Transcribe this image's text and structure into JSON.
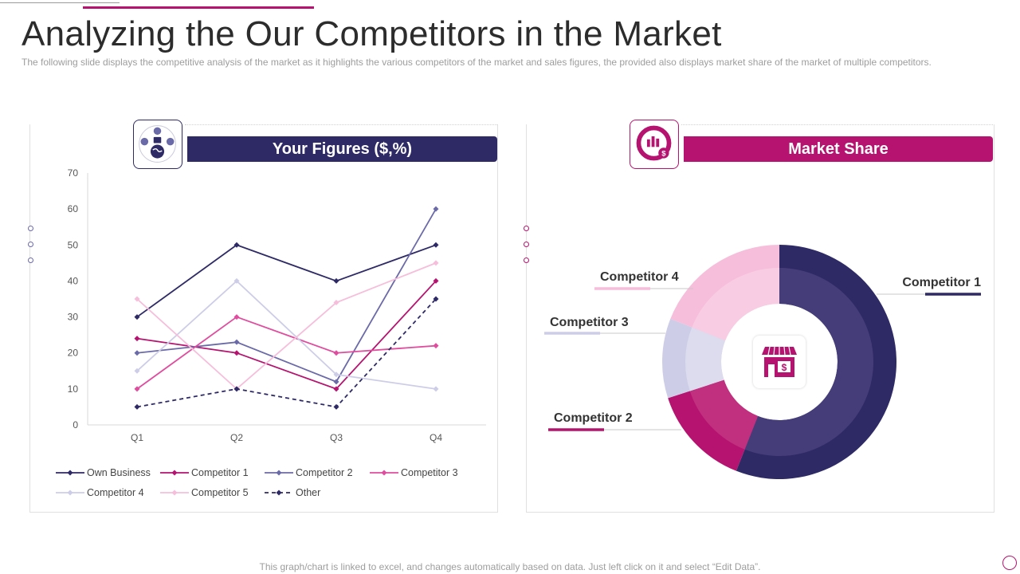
{
  "page": {
    "title": "Analyzing the Our Competitors in the Market",
    "subtitle": "The following  slide displays the competitive  analysis  of the market as it highlights the various  competitors of the market and sales figures,  the provided  also displays market share of the market of multiple competitors.",
    "footer": "This graph/chart is linked to excel,  and changes automatically based on data. Just left click on it and select “Edit Data”."
  },
  "left_panel": {
    "banner": "Your Figures ($,%)",
    "icon": "globe-people-icon"
  },
  "right_panel": {
    "banner": "Market Share",
    "icon": "analytics-dollar-icon",
    "center_icon": "store-dollar-icon"
  },
  "colors": {
    "navy": "#2e2a66",
    "magenta": "#b5136f",
    "blue_gray": "#6b6aa8",
    "pink": "#e04c9e",
    "lavender": "#cdcde8",
    "light_pink": "#f6bedb"
  },
  "chart_data": [
    {
      "type": "line",
      "categories": [
        "Q1",
        "Q2",
        "Q3",
        "Q4"
      ],
      "ylim": [
        0,
        70
      ],
      "yticks": [
        0,
        10,
        20,
        30,
        40,
        50,
        60,
        70
      ],
      "legend_position": "bottom",
      "series": [
        {
          "name": "Own Business",
          "values": [
            30,
            50,
            40,
            50
          ],
          "color": "#2e2a66",
          "dash": false
        },
        {
          "name": "Competitor 1",
          "values": [
            24,
            20,
            10,
            40
          ],
          "color": "#b5136f",
          "dash": false
        },
        {
          "name": "Competitor 2",
          "values": [
            20,
            23,
            12,
            60
          ],
          "color": "#6b6aa8",
          "dash": false
        },
        {
          "name": "Competitor 3",
          "values": [
            10,
            30,
            20,
            22
          ],
          "color": "#e04c9e",
          "dash": false
        },
        {
          "name": "Competitor 4",
          "values": [
            15,
            40,
            14,
            10
          ],
          "color": "#cdcde8",
          "dash": false
        },
        {
          "name": "Competitor 5",
          "values": [
            35,
            10,
            34,
            45
          ],
          "color": "#f6bedb",
          "dash": false
        },
        {
          "name": "Other",
          "values": [
            5,
            10,
            5,
            35
          ],
          "color": "#2e2a66",
          "dash": true
        }
      ]
    },
    {
      "type": "pie",
      "donut": true,
      "slices": [
        {
          "label": "Competitor 1",
          "value": 56,
          "color": "#2e2a66",
          "inner_color": "#443d7a"
        },
        {
          "label": "Competitor 2",
          "value": 14,
          "color": "#b5136f",
          "inner_color": "#c0307f"
        },
        {
          "label": "Competitor 3",
          "value": 11,
          "color": "#cdcde8",
          "inner_color": "#dcdcee"
        },
        {
          "label": "Competitor 4",
          "value": 19,
          "color": "#f6bedb",
          "inner_color": "#f8cde3"
        }
      ]
    }
  ]
}
